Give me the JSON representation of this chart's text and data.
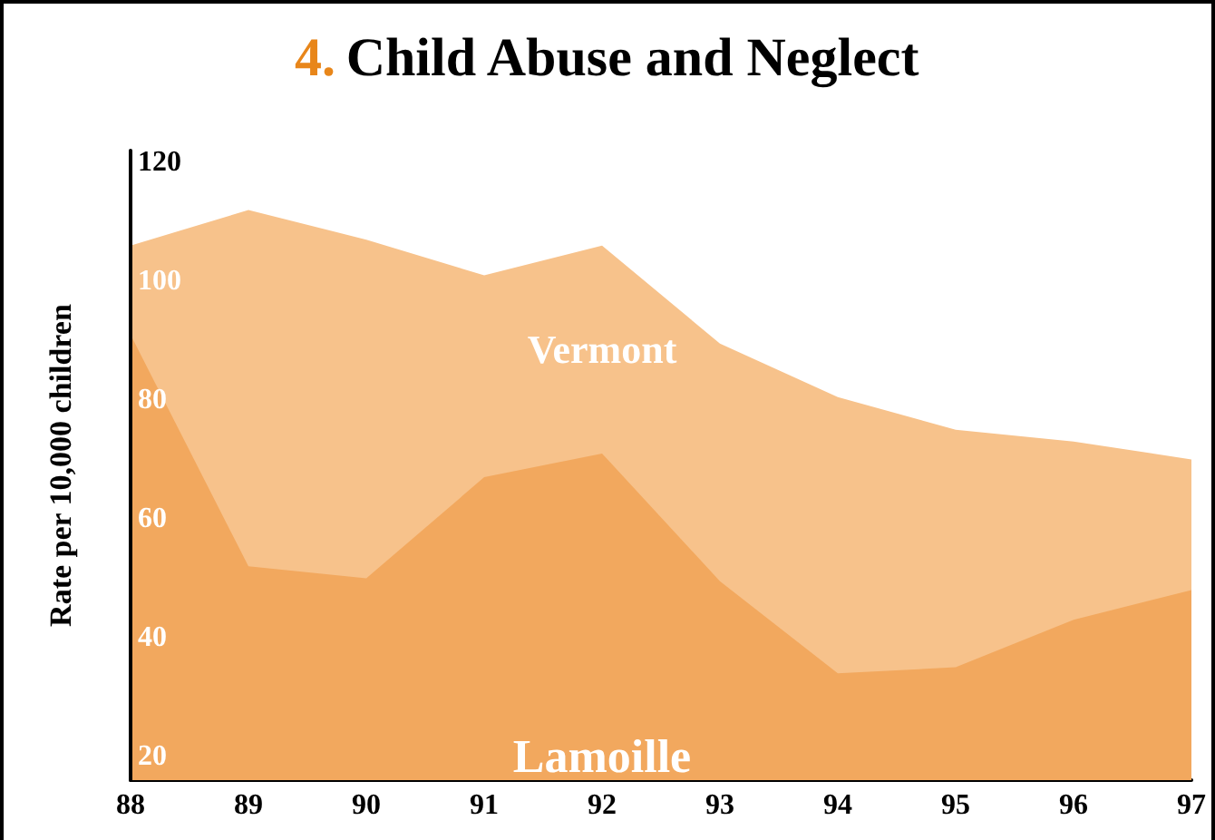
{
  "chart_data": {
    "type": "area",
    "title": "4. Child Abuse and Neglect",
    "ylabel": "Rate per 10,000 children",
    "categories": [
      "88",
      "89",
      "90",
      "91",
      "92",
      "93",
      "94",
      "95",
      "96",
      "97"
    ],
    "series": [
      {
        "name": "Vermont",
        "color": "#f7c28b",
        "values": [
          106,
          112,
          107,
          101,
          106,
          89.5,
          80.5,
          75,
          73,
          70
        ]
      },
      {
        "name": "Lamoille",
        "color": "#f2a85e",
        "values": [
          91,
          52,
          50,
          67,
          71,
          49.5,
          34,
          35,
          43,
          48
        ]
      }
    ],
    "ylim": [
      16,
      122
    ],
    "yticks": [
      20,
      40,
      60,
      80,
      100,
      120
    ],
    "grid": false,
    "legend": false
  }
}
